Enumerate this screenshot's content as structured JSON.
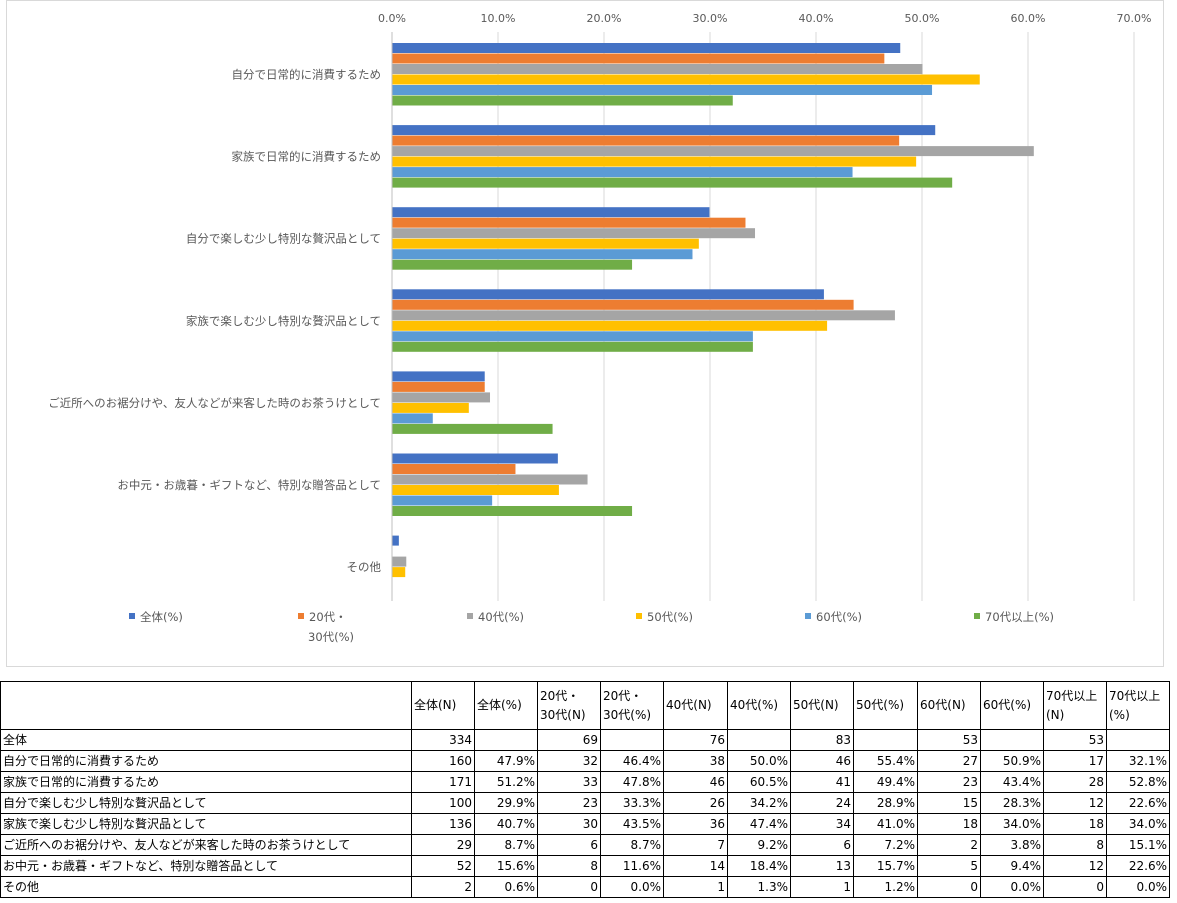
{
  "chart_data": {
    "type": "bar",
    "orientation": "horizontal",
    "categories": [
      "自分で日常的に消費するため",
      "家族で日常的に消費するため",
      "自分で楽しむ少し特別な贅沢品として",
      "家族で楽しむ少し特別な贅沢品として",
      "ご近所へのお裾分けや、友人などが来客した時のお茶うけとして",
      "お中元・お歳暮・ギフトなど、特別な贈答品として",
      "その他"
    ],
    "series": [
      {
        "name": "全体(%)",
        "color": "#4472c4",
        "values": [
          47.9,
          51.2,
          29.9,
          40.7,
          8.7,
          15.6,
          0.6
        ]
      },
      {
        "name": "20代・30代(%)",
        "color": "#ed7d31",
        "values": [
          46.4,
          47.8,
          33.3,
          43.5,
          8.7,
          11.6,
          0.0
        ]
      },
      {
        "name": "40代(%)",
        "color": "#a5a5a5",
        "values": [
          50.0,
          60.5,
          34.2,
          47.4,
          9.2,
          18.4,
          1.3
        ]
      },
      {
        "name": "50代(%)",
        "color": "#ffc000",
        "values": [
          55.4,
          49.4,
          28.9,
          41.0,
          7.2,
          15.7,
          1.2
        ]
      },
      {
        "name": "60代(%)",
        "color": "#5b9bd5",
        "values": [
          50.9,
          43.4,
          28.3,
          34.0,
          3.8,
          9.4,
          0.0
        ]
      },
      {
        "name": "70代以上(%)",
        "color": "#70ad47",
        "values": [
          32.1,
          52.8,
          22.6,
          34.0,
          15.1,
          22.6,
          0.0
        ]
      }
    ],
    "xlim": [
      0,
      70
    ],
    "xticks": [
      "0.0%",
      "10.0%",
      "20.0%",
      "30.0%",
      "40.0%",
      "50.0%",
      "60.0%",
      "70.0%"
    ],
    "x_axis_position": "top",
    "grid": true,
    "legend": {
      "position": "bottom",
      "labels": [
        "全体(%)",
        "20代・",
        "30代(%)",
        "40代(%)",
        "50代(%)",
        "60代(%)",
        "70代以上(%)"
      ]
    }
  },
  "table": {
    "headers": [
      "",
      "全体(N)",
      "全体(%)",
      "20代・30代(N)",
      "20代・30代(%)",
      "40代(N)",
      "40代(%)",
      "50代(N)",
      "50代(%)",
      "60代(N)",
      "60代(%)",
      "70代以上(N)",
      "70代以上(%)"
    ],
    "header_lines": [
      [
        ""
      ],
      [
        "全体(N)"
      ],
      [
        "全体(%)"
      ],
      [
        "20代・",
        "30代(N)"
      ],
      [
        "20代・",
        "30代(%)"
      ],
      [
        "40代(N)"
      ],
      [
        "40代(%)"
      ],
      [
        "50代(N)"
      ],
      [
        "50代(%)"
      ],
      [
        "60代(N)"
      ],
      [
        "60代(%)"
      ],
      [
        "70代以上",
        "(N)"
      ],
      [
        "70代以上",
        "(%)"
      ]
    ],
    "rows": [
      [
        "全体",
        "334",
        "",
        "69",
        "",
        "76",
        "",
        "83",
        "",
        "53",
        "",
        "53",
        ""
      ],
      [
        "自分で日常的に消費するため",
        "160",
        "47.9%",
        "32",
        "46.4%",
        "38",
        "50.0%",
        "46",
        "55.4%",
        "27",
        "50.9%",
        "17",
        "32.1%"
      ],
      [
        "家族で日常的に消費するため",
        "171",
        "51.2%",
        "33",
        "47.8%",
        "46",
        "60.5%",
        "41",
        "49.4%",
        "23",
        "43.4%",
        "28",
        "52.8%"
      ],
      [
        "自分で楽しむ少し特別な贅沢品として",
        "100",
        "29.9%",
        "23",
        "33.3%",
        "26",
        "34.2%",
        "24",
        "28.9%",
        "15",
        "28.3%",
        "12",
        "22.6%"
      ],
      [
        "家族で楽しむ少し特別な贅沢品として",
        "136",
        "40.7%",
        "30",
        "43.5%",
        "36",
        "47.4%",
        "34",
        "41.0%",
        "18",
        "34.0%",
        "18",
        "34.0%"
      ],
      [
        "ご近所へのお裾分けや、友人などが来客した時のお茶うけとして",
        "29",
        "8.7%",
        "6",
        "8.7%",
        "7",
        "9.2%",
        "6",
        "7.2%",
        "2",
        "3.8%",
        "8",
        "15.1%"
      ],
      [
        "お中元・お歳暮・ギフトなど、特別な贈答品として",
        "52",
        "15.6%",
        "8",
        "11.6%",
        "14",
        "18.4%",
        "13",
        "15.7%",
        "5",
        "9.4%",
        "12",
        "22.6%"
      ],
      [
        "その他",
        "2",
        "0.6%",
        "0",
        "0.0%",
        "1",
        "1.3%",
        "1",
        "1.2%",
        "0",
        "0.0%",
        "0",
        "0.0%"
      ]
    ]
  }
}
